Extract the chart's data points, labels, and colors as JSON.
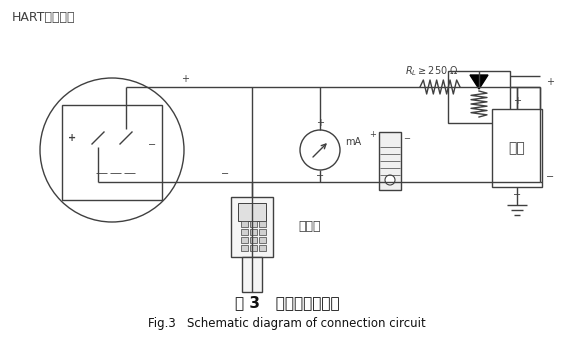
{
  "title_cn": "图 3   连接回路示意图",
  "title_en": "Fig.3   Schematic diagram of connection circuit",
  "label_hart": "HART兼容设备",
  "label_ammeter": "电流表",
  "label_power": "电源",
  "label_ma": "mA",
  "bg_color": "#ffffff",
  "line_color": "#404040",
  "fig_width": 5.74,
  "fig_height": 3.45,
  "dpi": 100
}
